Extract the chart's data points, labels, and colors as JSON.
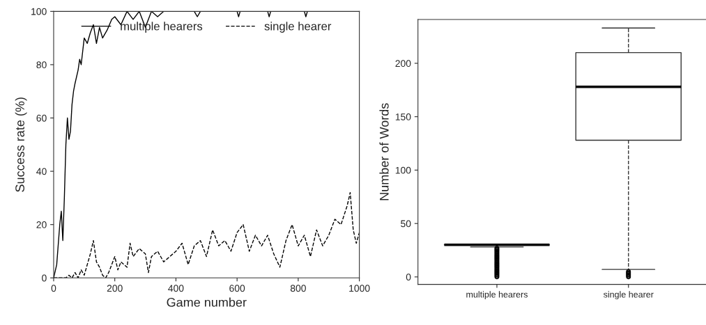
{
  "chart_data": [
    {
      "type": "line",
      "xlabel": "Game number",
      "ylabel": "Success rate (%)",
      "xlim": [
        0,
        1000
      ],
      "ylim": [
        0,
        100
      ],
      "xticks": [
        0,
        200,
        400,
        600,
        800,
        1000
      ],
      "yticks": [
        0,
        20,
        40,
        60,
        80,
        100
      ],
      "grid": false,
      "legend": "top",
      "series": [
        {
          "name": "multiple hearers",
          "color": "#000000",
          "line_style": "solid",
          "x": [
            0,
            10,
            20,
            25,
            30,
            35,
            40,
            45,
            50,
            55,
            60,
            65,
            70,
            80,
            85,
            90,
            95,
            100,
            110,
            120,
            130,
            140,
            150,
            160,
            175,
            190,
            200,
            220,
            240,
            260,
            280,
            300,
            320,
            340,
            360,
            380,
            400,
            460,
            470,
            480,
            600,
            605,
            610,
            700,
            705,
            710,
            820,
            825,
            830,
            1000
          ],
          "values": [
            0,
            5,
            20,
            25,
            14,
            30,
            50,
            60,
            52,
            55,
            65,
            70,
            73,
            78,
            82,
            80,
            85,
            90,
            88,
            92,
            95,
            88,
            94,
            90,
            93,
            97,
            98,
            95,
            100,
            97,
            100,
            94,
            100,
            98,
            100,
            100,
            100,
            100,
            98,
            100,
            100,
            98,
            100,
            100,
            98,
            100,
            100,
            98,
            100,
            100
          ]
        },
        {
          "name": "single hearer",
          "color": "#000000",
          "line_style": "dashed",
          "x": [
            0,
            40,
            50,
            60,
            70,
            80,
            90,
            100,
            110,
            120,
            130,
            140,
            150,
            160,
            170,
            180,
            190,
            200,
            210,
            220,
            240,
            250,
            260,
            280,
            300,
            310,
            320,
            340,
            360,
            380,
            400,
            420,
            440,
            460,
            480,
            500,
            520,
            540,
            560,
            580,
            600,
            620,
            640,
            660,
            680,
            700,
            720,
            740,
            760,
            780,
            800,
            820,
            840,
            860,
            880,
            900,
            920,
            940,
            960,
            970,
            980,
            990,
            1000
          ],
          "values": [
            0,
            0,
            1,
            0,
            2,
            0,
            3,
            1,
            5,
            9,
            14,
            6,
            4,
            1,
            0,
            2,
            5,
            8,
            3,
            6,
            4,
            13,
            8,
            11,
            9,
            2,
            8,
            10,
            6,
            8,
            10,
            13,
            5,
            12,
            14,
            8,
            18,
            12,
            14,
            10,
            17,
            20,
            10,
            16,
            12,
            16,
            9,
            4,
            14,
            20,
            12,
            16,
            8,
            18,
            12,
            16,
            22,
            20,
            27,
            32,
            18,
            13,
            17
          ]
        }
      ]
    },
    {
      "type": "box",
      "ylabel": "Number of Words",
      "categories": [
        "multiple hearers",
        "single hearer"
      ],
      "ylim": [
        -7,
        241
      ],
      "yticks": [
        0,
        50,
        100,
        150,
        200
      ],
      "grid": false,
      "boxes": [
        {
          "low": 28,
          "q1": 30,
          "median": 30,
          "q3": 30,
          "high": 30,
          "outliers": [
            0,
            1,
            2,
            3,
            4,
            5,
            6,
            7,
            8,
            9,
            10,
            11,
            12,
            13,
            14,
            15,
            16,
            17,
            18,
            19,
            20,
            21,
            22,
            23,
            24,
            25,
            26,
            27
          ]
        },
        {
          "low": 7,
          "q1": 128,
          "median": 178,
          "q3": 210,
          "high": 233,
          "outliers": [
            0,
            1,
            2,
            3,
            4,
            5
          ]
        }
      ]
    }
  ]
}
